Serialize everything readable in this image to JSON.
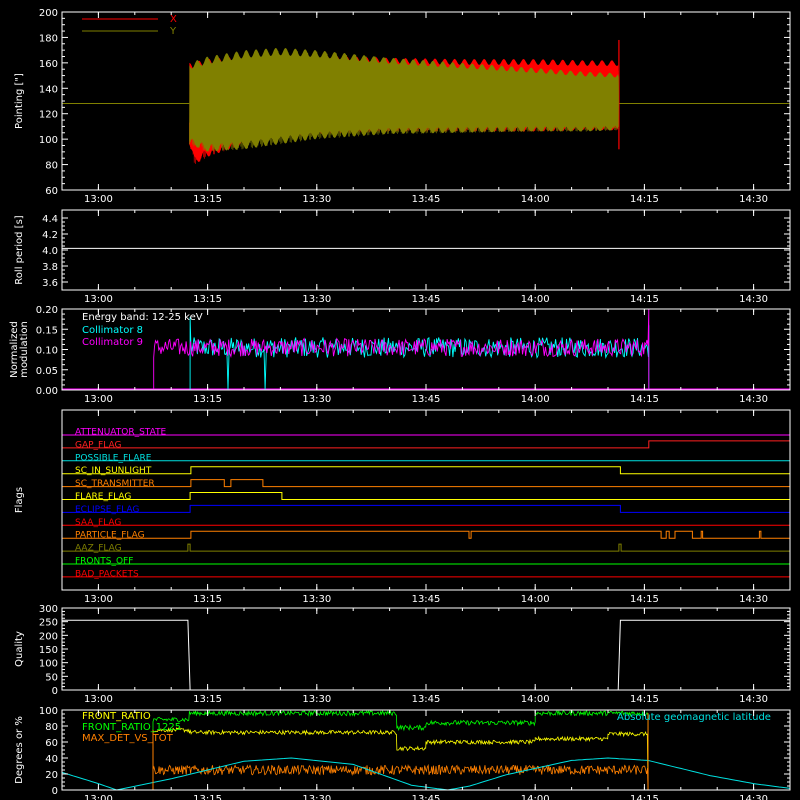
{
  "x_axis": {
    "tick_labels": [
      "13:00",
      "13:15",
      "13:30",
      "13:45",
      "14:00",
      "14:15",
      "14:30"
    ],
    "tick_minutes": [
      0,
      15,
      30,
      45,
      60,
      75,
      90
    ],
    "range_minutes": [
      -5,
      95
    ],
    "zero_time": "13:00"
  },
  "chart_data": [
    {
      "id": "pointing",
      "type": "line",
      "ylabel": "Pointing [\"]",
      "ylim": [
        60,
        200
      ],
      "yticks": [
        60,
        80,
        100,
        120,
        140,
        160,
        180,
        200
      ],
      "yticks_minor": true,
      "legend": "top-left",
      "baseline_value": 128,
      "active_interval": [
        "13:12:30",
        "14:11:40"
      ],
      "series": [
        {
          "name": "X",
          "color": "#ff0000",
          "center": 128,
          "upper": [
            [
              12.5,
              160
            ],
            [
              15,
              163
            ],
            [
              20,
              166
            ],
            [
              25,
              167
            ],
            [
              30,
              166
            ],
            [
              40,
              164
            ],
            [
              50,
              163
            ],
            [
              60,
              163
            ],
            [
              67,
              162
            ],
            [
              71.5,
              162
            ]
          ],
          "lower": [
            [
              12.5,
              96
            ],
            [
              13.2,
              80
            ],
            [
              15,
              86
            ],
            [
              20,
              96
            ],
            [
              25,
              101
            ],
            [
              30,
              104
            ],
            [
              40,
              106
            ],
            [
              50,
              106
            ],
            [
              60,
              106
            ],
            [
              67,
              107
            ],
            [
              71.5,
              107
            ]
          ],
          "spike": {
            "x": 71.5,
            "y": [
              92,
              178
            ]
          }
        },
        {
          "name": "Y",
          "color": "#808000",
          "center": 128,
          "upper": [
            [
              12.5,
              160
            ],
            [
              15,
              165
            ],
            [
              20,
              170
            ],
            [
              25,
              172
            ],
            [
              30,
              170
            ],
            [
              40,
              164
            ],
            [
              50,
              160
            ],
            [
              60,
              156
            ],
            [
              67,
              153
            ],
            [
              71.5,
              152
            ]
          ],
          "lower": [
            [
              12.5,
              96
            ],
            [
              15,
              90
            ],
            [
              20,
              92
            ],
            [
              25,
              96
            ],
            [
              30,
              100
            ],
            [
              40,
              104
            ],
            [
              50,
              105
            ],
            [
              60,
              106
            ],
            [
              67,
              106
            ],
            [
              71.5,
              107
            ]
          ]
        }
      ]
    },
    {
      "id": "roll",
      "type": "line",
      "ylabel": "Roll period [s]",
      "ylim": [
        3.5,
        4.5
      ],
      "yticks": [
        3.6,
        3.8,
        4.0,
        4.2,
        4.4
      ],
      "yticks_minor": true,
      "series": [
        {
          "name": "",
          "color": "#ffffff",
          "x": [
            -5,
            95
          ],
          "y": [
            4.02,
            4.02
          ]
        }
      ]
    },
    {
      "id": "modulation",
      "type": "line",
      "ylabel": "Normalized modulation",
      "ylim": [
        0,
        0.2
      ],
      "yticks": [
        0.0,
        0.05,
        0.1,
        0.15,
        0.2
      ],
      "yticks_minor": true,
      "annotation": "Energy band: 12-25 keV",
      "legend": "top-left",
      "series": [
        {
          "name": "Collimator 8",
          "color": "#00ffff",
          "level": 0.105,
          "spread": 0.025,
          "active": [
            12.6,
            75.6
          ],
          "gaps": [
            [
              17.7,
              17.9
            ],
            [
              22.8,
              23.0
            ]
          ],
          "edge_spikes": [
            0.18,
            0.16
          ]
        },
        {
          "name": "Collimator 9",
          "color": "#ff00ff",
          "level": 0.105,
          "spread": 0.022,
          "active": [
            7.6,
            75.6
          ],
          "edge_spikes": [
            0.08,
            0.2
          ]
        }
      ]
    },
    {
      "id": "flags",
      "type": "line",
      "ylabel": "Flags",
      "flags": [
        {
          "name": "ATTENUATOR_STATE",
          "color": "#ff00ff",
          "base": 0,
          "high": []
        },
        {
          "name": "GAP_FLAG",
          "color": "#ff2020",
          "base": 0,
          "high": [
            [
              75.6,
              95
            ]
          ]
        },
        {
          "name": "POSSIBLE_FLARE",
          "color": "#00e0e0",
          "base": 0,
          "high": []
        },
        {
          "name": "SC_IN_SUNLIGHT",
          "color": "#ffff00",
          "base": 1,
          "high": [
            [
              -5,
              12.7
            ],
            [
              71.7,
              95
            ]
          ]
        },
        {
          "name": "SC_TRANSMITTER",
          "color": "#ff8000",
          "base": 0,
          "high": [
            [
              12.7,
              17.3
            ],
            [
              18.2,
              22.6
            ]
          ]
        },
        {
          "name": "FLARE_FLAG",
          "color": "#ffff00",
          "base": 0,
          "high": [
            [
              12.6,
              25.2
            ]
          ]
        },
        {
          "name": "ECLIPSE_FLAG",
          "color": "#0000ff",
          "base": 1,
          "high": [
            [
              -5,
              12.6
            ],
            [
              71.7,
              95
            ]
          ]
        },
        {
          "name": "SAA_FLAG",
          "color": "#ff0000",
          "base": 0,
          "high": []
        },
        {
          "name": "PARTICLE_FLAG",
          "color": "#ff8000",
          "base": 0,
          "high": [
            [
              12.7,
              50.9
            ],
            [
              51.2,
              77.3
            ],
            [
              78.0,
              78.4
            ],
            [
              79.2,
              81.6
            ],
            [
              82.8,
              83.0
            ],
            [
              90.8,
              91.0
            ]
          ]
        },
        {
          "name": "AAZ_FLAG",
          "color": "#808000",
          "base": 0,
          "high": [
            [
              12.3,
              12.6
            ],
            [
              71.5,
              71.8
            ]
          ]
        },
        {
          "name": "FRONTS_OFF",
          "color": "#00ff00",
          "base": 0,
          "high": []
        },
        {
          "name": "BAD_PACKETS",
          "color": "#ff0000",
          "base": 0,
          "high": []
        }
      ]
    },
    {
      "id": "quality",
      "type": "line",
      "ylabel": "Quality",
      "ylim": [
        0,
        300
      ],
      "yticks": [
        0,
        50,
        100,
        150,
        200,
        250,
        300
      ],
      "yticks_minor": true,
      "series": [
        {
          "name": "",
          "color": "#ffffff",
          "x": [
            -5,
            12.3,
            12.6,
            71.4,
            71.7,
            95
          ],
          "y": [
            255,
            255,
            0,
            0,
            255,
            255
          ]
        }
      ]
    },
    {
      "id": "ratios",
      "type": "line",
      "ylabel": "Degrees or %",
      "ylim": [
        0,
        100
      ],
      "yticks": [
        0,
        20,
        40,
        60,
        80,
        100
      ],
      "yticks_minor": true,
      "legend": "top-left",
      "right_label": "Absolute geomagnetic latitude",
      "series": [
        {
          "name": "FRONT_RATIO",
          "color": "#ffff00",
          "segments": [
            {
              "x": [
                7.5,
                12.5
              ],
              "level": 75
            },
            {
              "x": [
                12.5,
                41.0
              ],
              "level": 72
            },
            {
              "x": [
                41.0,
                45.0
              ],
              "level": 52
            },
            {
              "x": [
                45.0,
                60.0
              ],
              "level": 60
            },
            {
              "x": [
                60.0,
                70.0
              ],
              "level": 64
            },
            {
              "x": [
                70.0,
                75.5
              ],
              "level": 70
            }
          ],
          "noise": 2.5
        },
        {
          "name": "FRONT_RATIO_1225",
          "color": "#00ff00",
          "segments": [
            {
              "x": [
                7.5,
                12.5
              ],
              "level": 88
            },
            {
              "x": [
                12.5,
                41.0
              ],
              "level": 96
            },
            {
              "x": [
                41.0,
                45.0
              ],
              "level": 78
            },
            {
              "x": [
                45.0,
                60.0
              ],
              "level": 84
            },
            {
              "x": [
                60.0,
                75.5
              ],
              "level": 96
            }
          ],
          "noise": 3.0
        },
        {
          "name": "MAX_DET_VS_TOT",
          "color": "#ff8000",
          "segments": [
            {
              "x": [
                7.5,
                75.5
              ],
              "level": 25
            }
          ],
          "noise": 6.0
        },
        {
          "name": "Absolute geomagnetic latitude",
          "color": "#00e0e0",
          "x": [
            -5,
            0,
            2.5,
            10,
            20,
            26.5,
            35,
            43,
            48,
            51,
            56,
            65,
            70,
            75.5,
            84,
            90,
            95
          ],
          "y": [
            22,
            8,
            0,
            14,
            36,
            40,
            32,
            6,
            0,
            5,
            19,
            37,
            40,
            37,
            18,
            8,
            2
          ]
        }
      ]
    }
  ]
}
